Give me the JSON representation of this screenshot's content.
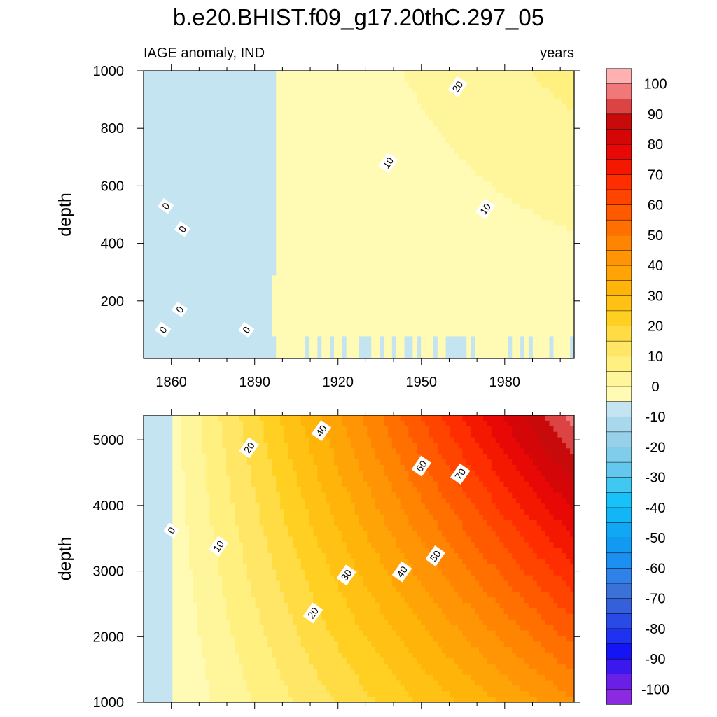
{
  "title": "b.e20.BHIST.f09_g17.20thC.297_05",
  "colors": {
    "levels": [
      -100,
      -95,
      -90,
      -85,
      -80,
      -75,
      -70,
      -65,
      -60,
      -55,
      -50,
      -45,
      -40,
      -35,
      -30,
      -25,
      -20,
      -15,
      -10,
      -5,
      0,
      5,
      10,
      15,
      20,
      25,
      30,
      35,
      40,
      45,
      50,
      55,
      60,
      65,
      70,
      75,
      80,
      85,
      90,
      95,
      100,
      105
    ],
    "fills": [
      "#8a2be2",
      "#6a1fe6",
      "#3a18ee",
      "#1414f5",
      "#1e32f0",
      "#2a4ae6",
      "#3560dc",
      "#3a72d8",
      "#2f82e8",
      "#1c90f0",
      "#129af2",
      "#10a8f4",
      "#12b6f6",
      "#18c2f8",
      "#40c8f0",
      "#64c8ee",
      "#80cceb",
      "#98d0ea",
      "#a8d8ec",
      "#c4e4f2",
      "#fffab4",
      "#fff59a",
      "#fff080",
      "#ffe666",
      "#ffdc44",
      "#ffd022",
      "#ffc214",
      "#ffb40a",
      "#ffa406",
      "#ff9404",
      "#ff8402",
      "#ff7000",
      "#ff5a00",
      "#ff4400",
      "#ff2e00",
      "#f41800",
      "#e80806",
      "#d40608",
      "#c80a0a",
      "#dc4444",
      "#f07878",
      "#ffb0b0"
    ]
  },
  "chart_data": [
    {
      "type": "heatmap",
      "panel": "upper",
      "left_label": "IAGE anomaly, IND",
      "right_label": "years",
      "xlabel": "",
      "ylabel": "depth",
      "xlim": [
        1850,
        2005
      ],
      "ylim": [
        1000,
        0
      ],
      "x_ticks": [
        1860,
        1890,
        1920,
        1950,
        1980
      ],
      "y_ticks": [
        200,
        400,
        600,
        800,
        1000
      ],
      "x_tick_labels_visible": true,
      "contour_labels": [
        {
          "text": "0",
          "x": 1857,
          "y": 100
        },
        {
          "text": "0",
          "x": 1863,
          "y": 170
        },
        {
          "text": "0",
          "x": 1887,
          "y": 100
        },
        {
          "text": "0",
          "x": 1864,
          "y": 450
        },
        {
          "text": "0",
          "x": 1858,
          "y": 530
        },
        {
          "text": "10",
          "x": 1938,
          "y": 680
        },
        {
          "text": "10",
          "x": 1973,
          "y": 520
        },
        {
          "text": "20",
          "x": 1963,
          "y": 945
        }
      ]
    },
    {
      "type": "heatmap",
      "panel": "lower",
      "xlabel": "",
      "ylabel": "depth",
      "xlim": [
        1850,
        2005
      ],
      "ylim": [
        5375,
        1000
      ],
      "x_ticks": [
        1860,
        1890,
        1920,
        1950,
        1980
      ],
      "y_ticks": [
        1000,
        2000,
        3000,
        4000,
        5000
      ],
      "x_tick_labels_visible": false,
      "contour_labels": [
        {
          "text": "0",
          "x": 1860,
          "y": 3620
        },
        {
          "text": "10",
          "x": 1877,
          "y": 3380
        },
        {
          "text": "20",
          "x": 1911,
          "y": 2360
        },
        {
          "text": "30",
          "x": 1923,
          "y": 2940
        },
        {
          "text": "40",
          "x": 1943,
          "y": 2990
        },
        {
          "text": "50",
          "x": 1955,
          "y": 3230
        },
        {
          "text": "20",
          "x": 1888,
          "y": 4880
        },
        {
          "text": "40",
          "x": 1914,
          "y": 5140
        },
        {
          "text": "60",
          "x": 1950,
          "y": 4600
        },
        {
          "text": "70",
          "x": 1964,
          "y": 4480
        }
      ]
    }
  ],
  "colorbar": {
    "tick_labels": [
      "100",
      "90",
      "80",
      "70",
      "60",
      "50",
      "40",
      "30",
      "20",
      "10",
      "0",
      "-10",
      "-20",
      "-30",
      "-40",
      "-50",
      "-60",
      "-70",
      "-80",
      "-90",
      "-100"
    ]
  }
}
